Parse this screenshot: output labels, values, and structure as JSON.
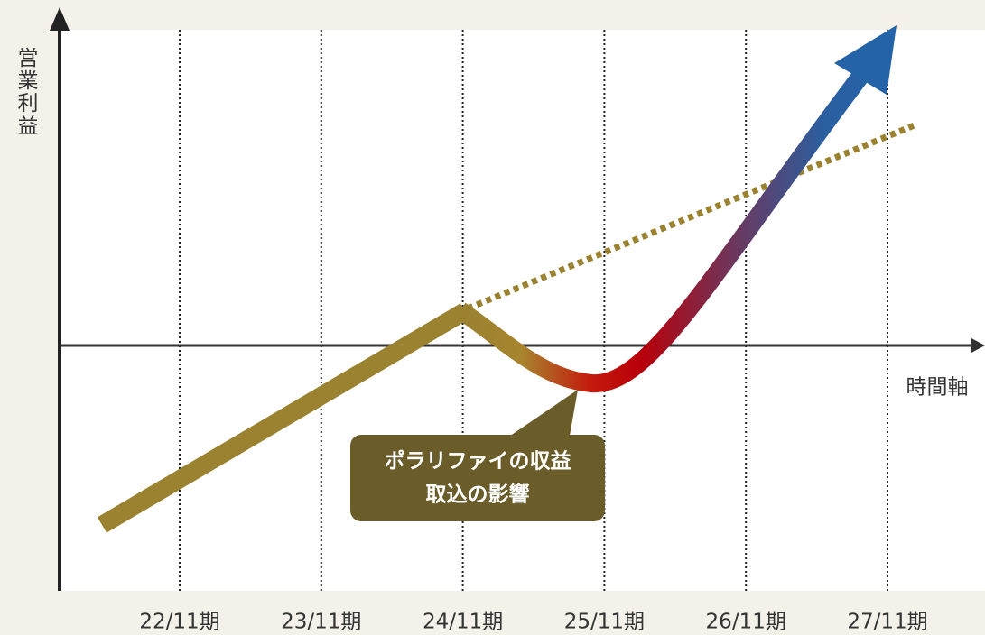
{
  "y_axis_label": "営業利益",
  "x_axis_label": "時間軸",
  "categories": [
    "22/11期",
    "23/11期",
    "24/11期",
    "25/11期",
    "26/11期",
    "27/11期"
  ],
  "callout": {
    "lines": [
      "ポラリファイの収益",
      "取込の影響"
    ]
  }
}
